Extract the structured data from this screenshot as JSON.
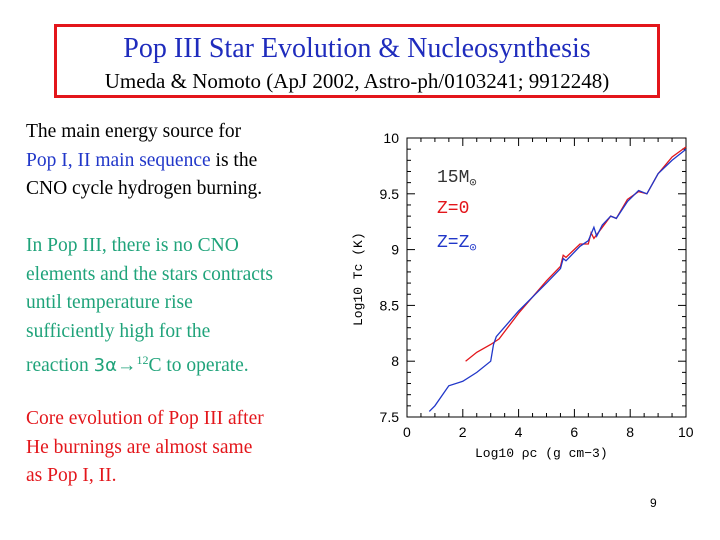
{
  "title": {
    "main": "Pop III Star Evolution & Nucleosynthesis",
    "sub": "Umeda & Nomoto (ApJ 2002, Astro-ph/0103241; 9912248)"
  },
  "para1": {
    "line1": "The main energy source for",
    "line2_blue": "Pop I, II main sequence",
    "line2_rest": " is the",
    "line3": "CNO cycle hydrogen burning."
  },
  "para2": {
    "line1": "In Pop III, there is no CNO",
    "line2": "elements and the stars contracts",
    "line3": "until temperature rise",
    "line4": "sufficiently high for the",
    "line5_a": "reaction ",
    "line5_b": "3α",
    "line5_c": "→",
    "line5_d": "12",
    "line5_e": "C to operate."
  },
  "para3": {
    "line1": "Core evolution of Pop III after",
    "line2": "He burnings are almost same",
    "line3": "as Pop I, II."
  },
  "page_number": "9",
  "colors": {
    "title_border": "#e3161b",
    "title_text": "#1f2cbd",
    "green_text": "#1fa37a",
    "red_text": "#e3161b",
    "blue_text": "#2137c9"
  },
  "chart_data": {
    "type": "line",
    "xlabel": "Log10 ρc (g cm−3)",
    "ylabel": "Log10 Tc (K)",
    "xlim": [
      0,
      10
    ],
    "ylim": [
      7.5,
      10
    ],
    "x_ticks": [
      "0",
      "2",
      "4",
      "6",
      "8",
      "10"
    ],
    "y_ticks": [
      "7.5",
      "8",
      "8.5",
      "9",
      "9.5",
      "10"
    ],
    "legend": {
      "mass": "15M",
      "series": [
        "Z=0",
        "Z=Z"
      ]
    },
    "series": [
      {
        "name": "Z=0",
        "color": "#e3161b",
        "x": [
          2.1,
          2.5,
          3.0,
          3.3,
          4.0,
          5.0,
          5.5,
          5.6,
          5.7,
          6.2,
          6.5,
          6.6,
          6.7,
          7.0,
          7.3,
          7.5,
          7.9,
          8.3,
          8.6,
          9.0,
          9.5,
          10.0
        ],
        "y": [
          8.0,
          8.08,
          8.15,
          8.2,
          8.43,
          8.72,
          8.85,
          8.95,
          8.93,
          9.05,
          9.05,
          9.15,
          9.1,
          9.2,
          9.3,
          9.28,
          9.45,
          9.52,
          9.5,
          9.68,
          9.83,
          9.92
        ]
      },
      {
        "name": "Z=Z",
        "color": "#2137c9",
        "x": [
          0.8,
          1.0,
          1.5,
          2.0,
          2.5,
          3.0,
          3.1,
          3.2,
          4.0,
          5.0,
          5.5,
          5.6,
          5.7,
          6.2,
          6.5,
          6.7,
          6.8,
          7.0,
          7.3,
          7.5,
          7.9,
          8.3,
          8.6,
          9.0,
          9.5,
          10.0
        ],
        "y": [
          7.55,
          7.6,
          7.78,
          7.82,
          7.9,
          8.0,
          8.15,
          8.22,
          8.45,
          8.7,
          8.83,
          8.92,
          8.9,
          9.03,
          9.08,
          9.2,
          9.12,
          9.22,
          9.3,
          9.28,
          9.43,
          9.53,
          9.5,
          9.68,
          9.8,
          9.9
        ]
      }
    ]
  }
}
